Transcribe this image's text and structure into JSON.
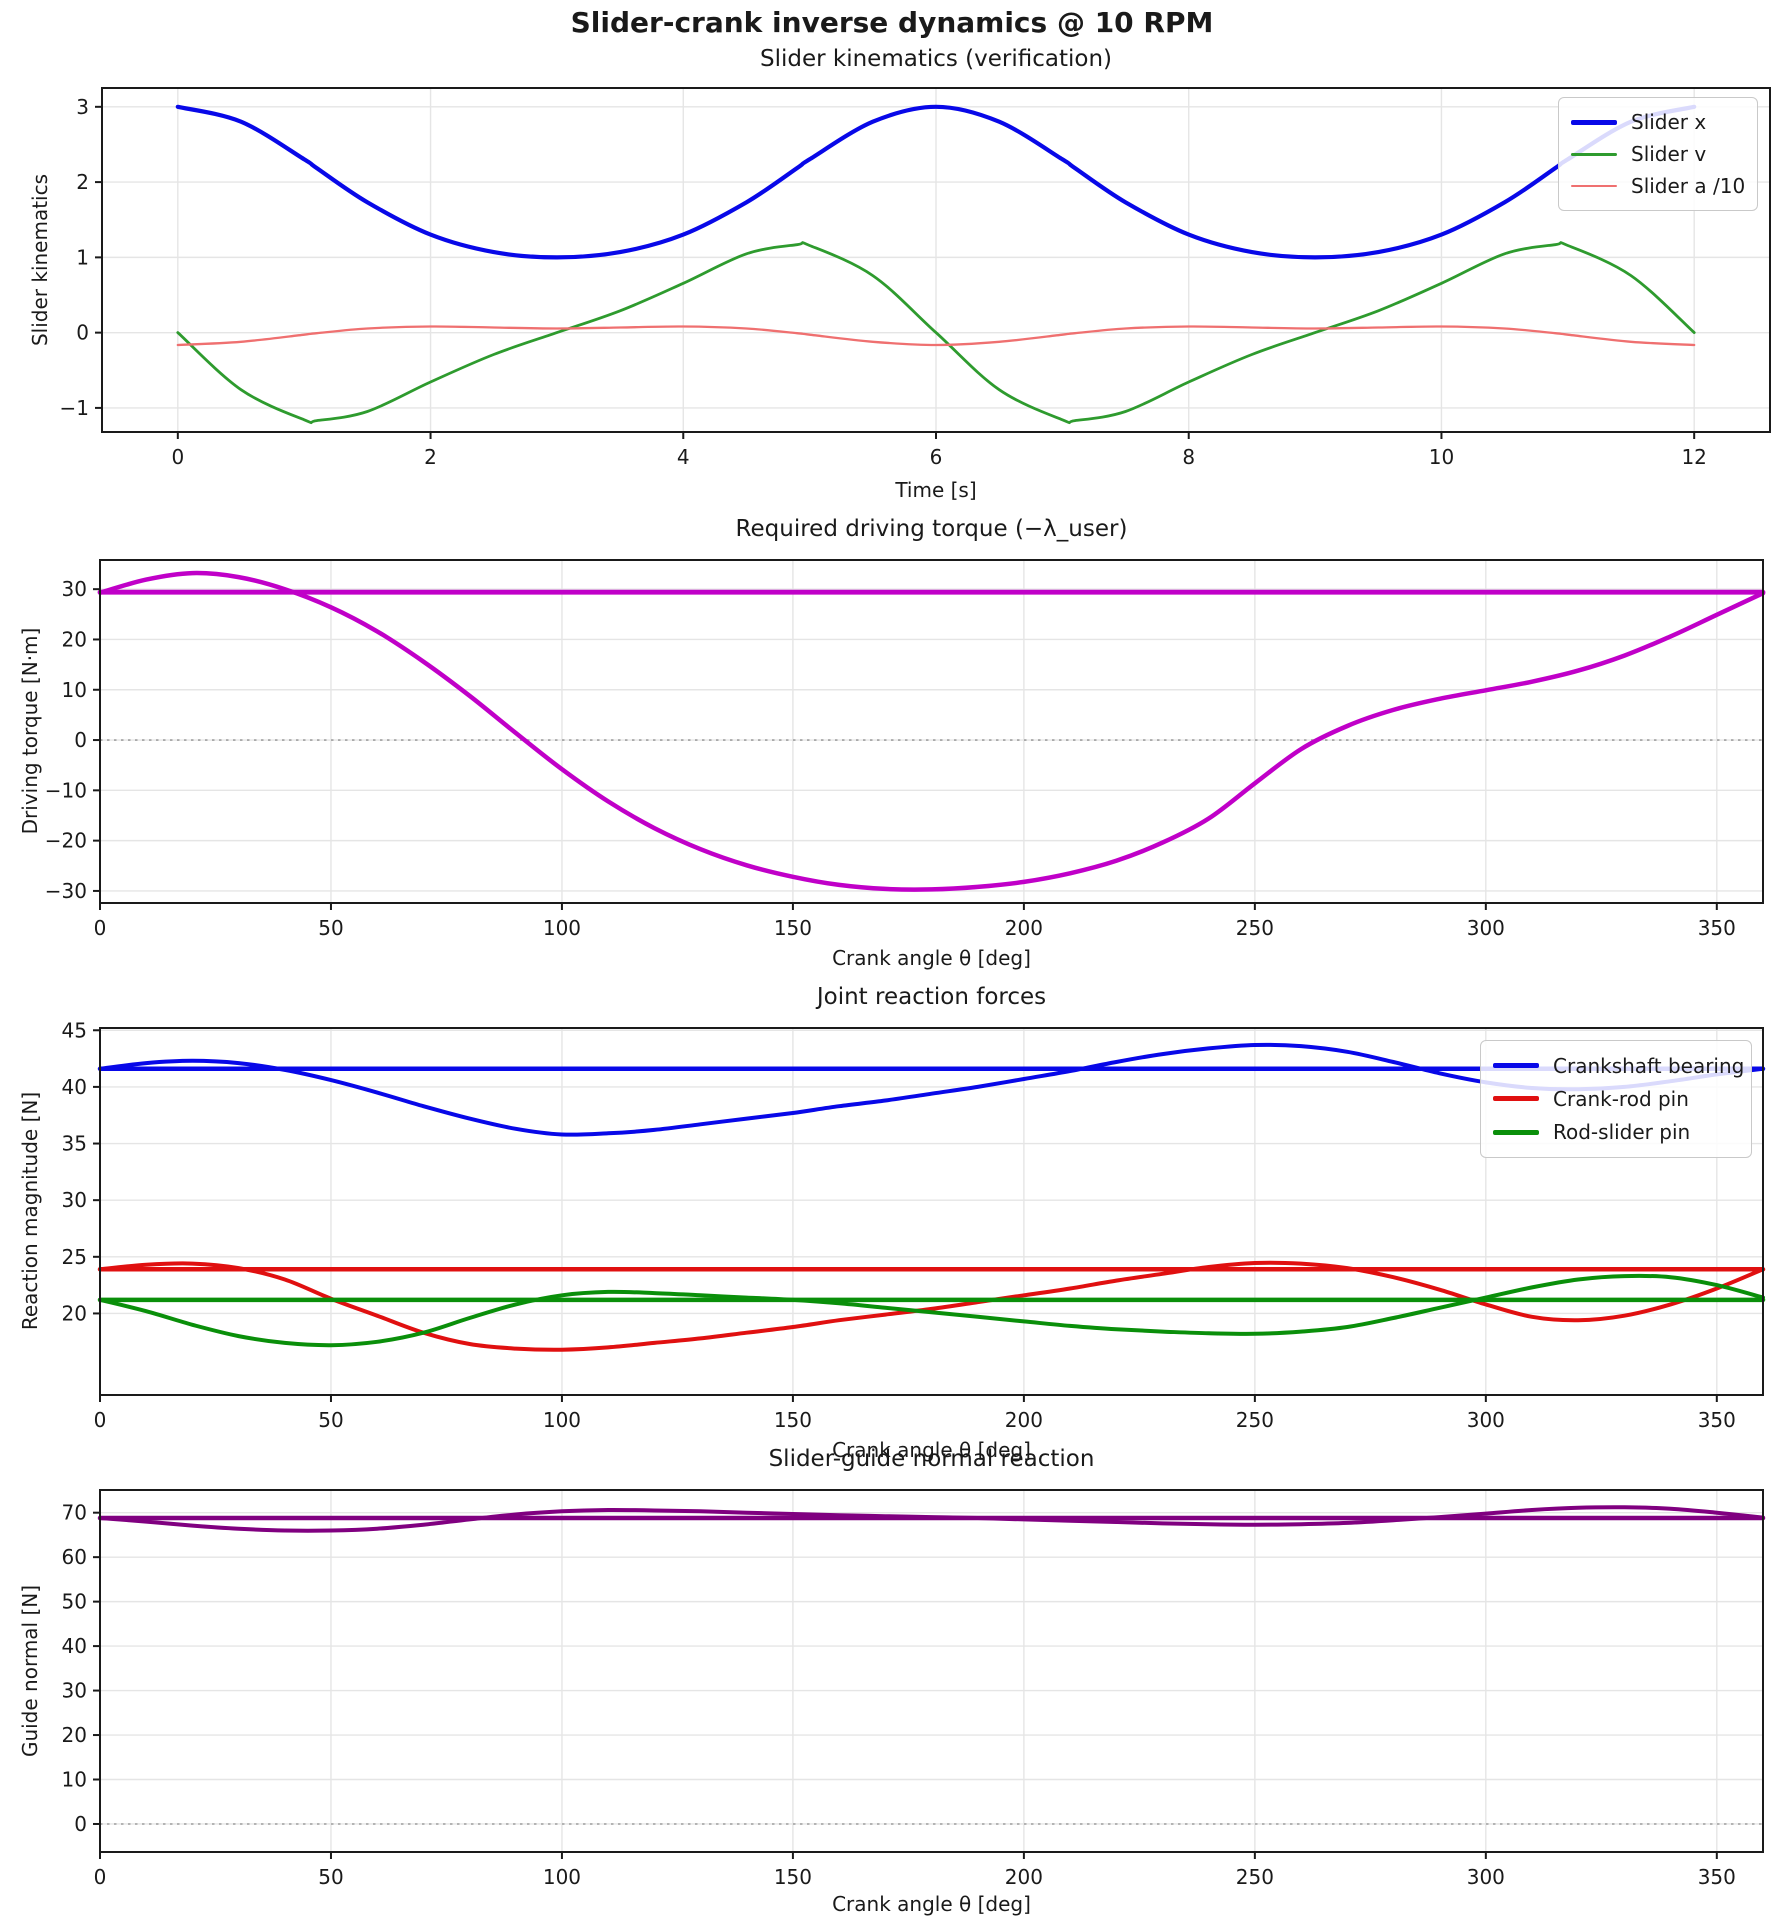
{
  "figure": {
    "title": "Slider-crank inverse dynamics @ 10 RPM",
    "background": "#ffffff",
    "grid_color": "#e5e5e5",
    "spine_color": "#1a1a1a",
    "zero_line_color": "#aaaaaa"
  },
  "chart_data": [
    {
      "type": "line",
      "title": "Slider kinematics (verification)",
      "xlabel": "Time [s]",
      "ylabel": "Slider kinematics",
      "xlim": [
        -0.6,
        12.6
      ],
      "ylim": [
        -1.32,
        3.25
      ],
      "xticks": [
        0,
        2,
        4,
        6,
        8,
        10,
        12
      ],
      "yticks": [
        -1,
        0,
        1,
        2,
        3
      ],
      "grid": true,
      "zero_line": false,
      "legend_position": "top-right",
      "legend": [
        {
          "label": "Slider x",
          "color": "#0808e8",
          "thickness": 5
        },
        {
          "label": "Slider v",
          "color": "#2e9b2e",
          "thickness": 3
        },
        {
          "label": "Slider a /10",
          "color": "#ef7070",
          "thickness": 2.5
        }
      ],
      "x": [
        0,
        0.5,
        1,
        1.1,
        1.5,
        2,
        2.5,
        3,
        3.5,
        4,
        4.5,
        4.9,
        5,
        5.5,
        6,
        6.5,
        7,
        7.1,
        7.5,
        8,
        8.5,
        9,
        9.5,
        10,
        10.5,
        10.9,
        11,
        11.5,
        12
      ],
      "series": [
        {
          "name": "Slider x",
          "color": "#0808e8",
          "width": 4.2,
          "y": [
            3.0,
            2.802,
            2.303,
            2.186,
            1.732,
            1.303,
            1.07,
            1.0,
            1.07,
            1.303,
            1.732,
            2.186,
            2.303,
            2.802,
            3.0,
            2.802,
            2.303,
            2.186,
            1.732,
            1.303,
            1.07,
            1.0,
            1.07,
            1.303,
            1.732,
            2.186,
            2.303,
            2.802,
            3.0
          ]
        },
        {
          "name": "Slider v",
          "color": "#2e9b2e",
          "width": 2.8,
          "y": [
            0,
            -0.758,
            -1.158,
            -1.168,
            -1.047,
            -0.656,
            -0.29,
            0,
            0.29,
            0.656,
            1.047,
            1.168,
            1.158,
            0.758,
            0,
            -0.758,
            -1.158,
            -1.168,
            -1.047,
            -0.656,
            -0.29,
            0,
            0.29,
            0.656,
            1.047,
            1.168,
            1.158,
            0.758,
            0
          ]
        },
        {
          "name": "Slider a /10",
          "color": "#ef7070",
          "width": 2.3,
          "y": [
            -0.164,
            -0.122,
            -0.027,
            -0.008,
            0.055,
            0.082,
            0.068,
            0.055,
            0.068,
            0.082,
            0.055,
            -0.008,
            -0.027,
            -0.122,
            -0.164,
            -0.122,
            -0.027,
            -0.008,
            0.055,
            0.082,
            0.068,
            0.055,
            0.068,
            0.082,
            0.055,
            -0.008,
            -0.027,
            -0.122,
            -0.164
          ]
        }
      ]
    },
    {
      "type": "line",
      "title": "Required driving torque (−λ_user)",
      "xlabel": "Crank angle θ [deg]",
      "ylabel": "Driving torque [N·m]",
      "xlim": [
        0,
        360
      ],
      "ylim": [
        -32.4,
        35.8
      ],
      "xticks": [
        0,
        50,
        100,
        150,
        200,
        250,
        300,
        350
      ],
      "yticks": [
        -30,
        -20,
        -10,
        0,
        10,
        20,
        30
      ],
      "grid": true,
      "zero_line": true,
      "legend": [],
      "x": [
        0,
        10,
        20,
        30,
        40,
        50,
        60,
        70,
        80,
        90,
        100,
        110,
        120,
        130,
        140,
        150,
        160,
        170,
        180,
        190,
        200,
        210,
        220,
        230,
        240,
        250,
        260,
        270,
        280,
        290,
        300,
        310,
        320,
        330,
        340,
        350,
        360
      ],
      "series": [
        {
          "name": "Driving torque",
          "color": "#c000c8",
          "width": 4.5,
          "y": [
            29.3,
            31.9,
            33.2,
            32.4,
            30.0,
            26.4,
            21.6,
            15.6,
            8.8,
            1.4,
            -5.8,
            -12.2,
            -17.5,
            -21.7,
            -24.9,
            -27.2,
            -28.8,
            -29.6,
            -29.7,
            -29.2,
            -28.2,
            -26.5,
            -24.0,
            -20.4,
            -15.6,
            -8.6,
            -1.8,
            2.8,
            6.0,
            8.2,
            9.9,
            11.6,
            13.8,
            16.8,
            20.6,
            24.9,
            29.2
          ]
        },
        {
          "name": "Driving torque flat",
          "color": "#c000c8",
          "width": 4.8,
          "x": [
            0,
            360
          ],
          "y": [
            29.4,
            29.4
          ]
        }
      ]
    },
    {
      "type": "line",
      "title": "Joint reaction forces",
      "xlabel": "Crank angle θ [deg]",
      "ylabel": "Reaction magnitude [N]",
      "xlim": [
        0,
        360
      ],
      "ylim": [
        12.8,
        45.2
      ],
      "xticks": [
        0,
        50,
        100,
        150,
        200,
        250,
        300,
        350
      ],
      "yticks": [
        20,
        25,
        30,
        35,
        40,
        45
      ],
      "grid": true,
      "zero_line": false,
      "legend_position": "top-right",
      "legend": [
        {
          "label": "Crankshaft bearing",
          "color": "#0808e8",
          "thickness": 5
        },
        {
          "label": "Crank-rod pin",
          "color": "#e01010",
          "thickness": 5
        },
        {
          "label": "Rod-slider pin",
          "color": "#0a8f0a",
          "thickness": 5
        }
      ],
      "x": [
        0,
        10,
        20,
        30,
        40,
        50,
        60,
        70,
        80,
        90,
        100,
        110,
        120,
        130,
        140,
        150,
        160,
        170,
        180,
        190,
        200,
        210,
        220,
        230,
        240,
        250,
        260,
        270,
        280,
        290,
        300,
        310,
        320,
        330,
        340,
        350,
        360
      ],
      "series": [
        {
          "name": "Crankshaft bearing",
          "color": "#0808e8",
          "width": 4,
          "y": [
            41.6,
            42.1,
            42.3,
            42.1,
            41.5,
            40.6,
            39.5,
            38.3,
            37.2,
            36.3,
            35.8,
            35.9,
            36.2,
            36.7,
            37.2,
            37.7,
            38.3,
            38.8,
            39.4,
            40.0,
            40.7,
            41.4,
            42.2,
            42.9,
            43.4,
            43.7,
            43.6,
            43.1,
            42.2,
            41.2,
            40.4,
            39.9,
            39.8,
            40.0,
            40.5,
            41.1,
            41.6
          ]
        },
        {
          "name": "Crankshaft bearing flat",
          "color": "#0808e8",
          "width": 4.5,
          "x": [
            0,
            360
          ],
          "y": [
            41.6,
            41.6
          ]
        },
        {
          "name": "Crank-rod pin",
          "color": "#e01010",
          "width": 4,
          "y": [
            23.9,
            24.3,
            24.4,
            24.0,
            23.0,
            21.3,
            19.8,
            18.3,
            17.3,
            16.9,
            16.8,
            17.0,
            17.4,
            17.8,
            18.3,
            18.8,
            19.4,
            19.9,
            20.4,
            21.0,
            21.6,
            22.2,
            22.9,
            23.5,
            24.1,
            24.45,
            24.4,
            24.0,
            23.2,
            22.1,
            20.8,
            19.7,
            19.4,
            19.8,
            20.8,
            22.2,
            23.9
          ]
        },
        {
          "name": "Crank-rod pin flat",
          "color": "#e01010",
          "width": 4.5,
          "x": [
            0,
            360
          ],
          "y": [
            23.9,
            23.9
          ]
        },
        {
          "name": "Rod-slider pin",
          "color": "#0a8f0a",
          "width": 4,
          "y": [
            21.2,
            20.2,
            19.0,
            18.0,
            17.4,
            17.2,
            17.5,
            18.3,
            19.6,
            20.8,
            21.6,
            21.9,
            21.8,
            21.6,
            21.4,
            21.2,
            20.9,
            20.5,
            20.1,
            19.7,
            19.3,
            18.9,
            18.6,
            18.4,
            18.25,
            18.2,
            18.4,
            18.8,
            19.6,
            20.5,
            21.4,
            22.3,
            23.0,
            23.3,
            23.2,
            22.5,
            21.4
          ]
        },
        {
          "name": "Rod-slider pin flat",
          "color": "#0a8f0a",
          "width": 4.5,
          "x": [
            0,
            360
          ],
          "y": [
            21.2,
            21.2
          ]
        }
      ]
    },
    {
      "type": "line",
      "title": "Slider-guide normal reaction",
      "xlabel": "Crank angle θ [deg]",
      "ylabel": "Guide normal [N]",
      "xlim": [
        0,
        360
      ],
      "ylim": [
        -6.3,
        75.1
      ],
      "xticks": [
        0,
        50,
        100,
        150,
        200,
        250,
        300,
        350
      ],
      "yticks": [
        0,
        10,
        20,
        30,
        40,
        50,
        60,
        70
      ],
      "grid": true,
      "zero_line": true,
      "legend": [],
      "x": [
        0,
        10,
        20,
        30,
        40,
        50,
        60,
        70,
        80,
        90,
        100,
        110,
        120,
        130,
        140,
        150,
        160,
        170,
        180,
        190,
        200,
        210,
        220,
        230,
        240,
        250,
        260,
        270,
        280,
        290,
        300,
        310,
        320,
        330,
        340,
        350,
        360
      ],
      "series": [
        {
          "name": "Guide normal",
          "color": "#800080",
          "width": 4,
          "y": [
            68.8,
            68.0,
            67.1,
            66.4,
            66.0,
            66.0,
            66.4,
            67.3,
            68.5,
            69.6,
            70.3,
            70.6,
            70.5,
            70.3,
            70.0,
            69.7,
            69.4,
            69.2,
            69.0,
            68.8,
            68.5,
            68.2,
            67.9,
            67.6,
            67.4,
            67.3,
            67.4,
            67.7,
            68.3,
            69.0,
            69.8,
            70.6,
            71.1,
            71.2,
            70.9,
            70.0,
            68.9
          ]
        },
        {
          "name": "Guide normal flat",
          "color": "#800080",
          "width": 4.5,
          "x": [
            0,
            360
          ],
          "y": [
            68.8,
            68.8
          ]
        }
      ]
    }
  ]
}
